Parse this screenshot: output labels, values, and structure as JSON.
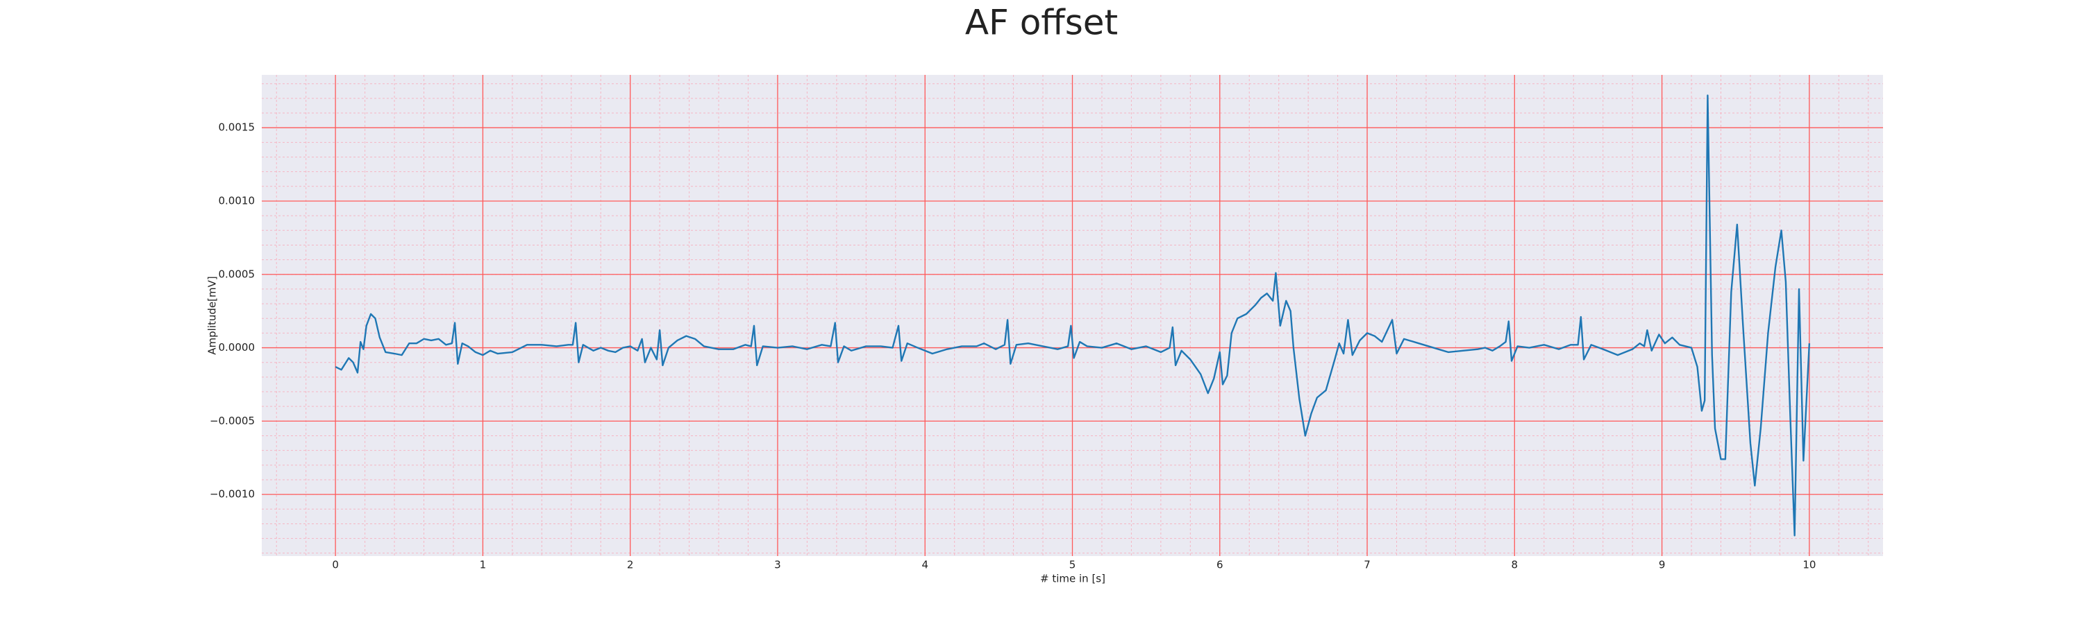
{
  "chart_data": {
    "type": "line",
    "title": "AF offset",
    "xlabel": "# time in [s]",
    "ylabel": "Amplitude[mV]",
    "color": "#1f77b4",
    "background": "#eaeaf2",
    "grid": true,
    "grid_color": "#ff5a5a",
    "minor_grid": true,
    "minor_grid_color": "#f5b6c4",
    "xlim": [
      -0.5,
      10.5
    ],
    "xticks": [
      0,
      1,
      2,
      3,
      4,
      5,
      6,
      7,
      8,
      9,
      10
    ],
    "ylim": [
      -0.00142,
      0.00186
    ],
    "yticks": [
      {
        "value": -0.001,
        "label": "−0.0010"
      },
      {
        "value": -0.0005,
        "label": "−0.0005"
      },
      {
        "value": 0,
        "label": "0.0000"
      },
      {
        "value": 0.0005,
        "label": "0.0005"
      },
      {
        "value": 0.001,
        "label": "0.0010"
      },
      {
        "value": 0.0015,
        "label": "0.0015"
      }
    ],
    "x": [
      0.0,
      0.04,
      0.09,
      0.12,
      0.15,
      0.17,
      0.19,
      0.21,
      0.24,
      0.27,
      0.3,
      0.34,
      0.4,
      0.45,
      0.5,
      0.55,
      0.6,
      0.65,
      0.7,
      0.75,
      0.79,
      0.81,
      0.83,
      0.86,
      0.9,
      0.95,
      1.0,
      1.05,
      1.1,
      1.2,
      1.3,
      1.4,
      1.5,
      1.58,
      1.61,
      1.63,
      1.65,
      1.68,
      1.75,
      1.8,
      1.85,
      1.9,
      1.95,
      2.0,
      2.05,
      2.08,
      2.1,
      2.14,
      2.18,
      2.2,
      2.22,
      2.26,
      2.32,
      2.38,
      2.44,
      2.5,
      2.6,
      2.7,
      2.78,
      2.82,
      2.84,
      2.86,
      2.9,
      3.0,
      3.1,
      3.2,
      3.3,
      3.36,
      3.39,
      3.41,
      3.45,
      3.5,
      3.6,
      3.7,
      3.78,
      3.82,
      3.84,
      3.88,
      3.95,
      4.05,
      4.15,
      4.25,
      4.35,
      4.4,
      4.48,
      4.54,
      4.56,
      4.58,
      4.62,
      4.7,
      4.8,
      4.9,
      4.97,
      4.99,
      5.01,
      5.05,
      5.1,
      5.2,
      5.3,
      5.4,
      5.5,
      5.6,
      5.66,
      5.68,
      5.7,
      5.74,
      5.8,
      5.87,
      5.92,
      5.96,
      6.0,
      6.02,
      6.05,
      6.08,
      6.12,
      6.18,
      6.24,
      6.28,
      6.32,
      6.36,
      6.38,
      6.41,
      6.45,
      6.48,
      6.5,
      6.54,
      6.58,
      6.62,
      6.66,
      6.72,
      6.78,
      6.81,
      6.84,
      6.87,
      6.9,
      6.95,
      7.0,
      7.05,
      7.1,
      7.17,
      7.2,
      7.25,
      7.35,
      7.45,
      7.55,
      7.65,
      7.75,
      7.8,
      7.85,
      7.9,
      7.94,
      7.96,
      7.98,
      8.02,
      8.1,
      8.2,
      8.3,
      8.38,
      8.43,
      8.45,
      8.47,
      8.52,
      8.6,
      8.7,
      8.8,
      8.85,
      8.88,
      8.9,
      8.93,
      8.98,
      9.02,
      9.07,
      9.12,
      9.2,
      9.24,
      9.27,
      9.29,
      9.31,
      9.34,
      9.36,
      9.4,
      9.43,
      9.47,
      9.51,
      9.55,
      9.6,
      9.63,
      9.67,
      9.72,
      9.77,
      9.81,
      9.84,
      9.87,
      9.9,
      9.93,
      9.96,
      10.0
    ],
    "values": [
      -0.00013,
      -0.00015,
      -7e-05,
      -0.0001,
      -0.00017,
      4e-05,
      -1e-05,
      0.00015,
      0.00023,
      0.0002,
      7e-05,
      -3e-05,
      -4e-05,
      -5e-05,
      3e-05,
      3e-05,
      6e-05,
      5e-05,
      6e-05,
      2e-05,
      3e-05,
      0.00017,
      -0.00011,
      3e-05,
      1e-05,
      -3e-05,
      -5e-05,
      -2e-05,
      -4e-05,
      -3e-05,
      2e-05,
      2e-05,
      1e-05,
      2e-05,
      2e-05,
      0.00017,
      -0.0001,
      2e-05,
      -2e-05,
      0,
      -2e-05,
      -3e-05,
      0,
      1e-05,
      -2e-05,
      6e-05,
      -0.0001,
      0,
      -8e-05,
      0.00012,
      -0.00012,
      0,
      5e-05,
      8e-05,
      6e-05,
      1e-05,
      -1e-05,
      -1e-05,
      2e-05,
      1e-05,
      0.00015,
      -0.00012,
      1e-05,
      0,
      1e-05,
      -1e-05,
      2e-05,
      1e-05,
      0.00017,
      -0.0001,
      1e-05,
      -2e-05,
      1e-05,
      1e-05,
      0,
      0.00015,
      -9e-05,
      3e-05,
      0,
      -4e-05,
      -1e-05,
      1e-05,
      1e-05,
      3e-05,
      -1e-05,
      2e-05,
      0.00019,
      -0.00011,
      2e-05,
      3e-05,
      1e-05,
      -1e-05,
      1e-05,
      0.00015,
      -7e-05,
      4e-05,
      1e-05,
      0,
      3e-05,
      -1e-05,
      1e-05,
      -3e-05,
      0,
      0.00014,
      -0.00012,
      -2e-05,
      -8e-05,
      -0.00018,
      -0.00031,
      -0.00021,
      -3e-05,
      -0.00025,
      -0.00019,
      0.0001,
      0.0002,
      0.00023,
      0.00029,
      0.00034,
      0.00037,
      0.00032,
      0.00051,
      0.00015,
      0.00032,
      0.00025,
      0,
      -0.00035,
      -0.0006,
      -0.00045,
      -0.00034,
      -0.00029,
      -8e-05,
      3e-05,
      -4e-05,
      0.00019,
      -5e-05,
      5e-05,
      0.0001,
      8e-05,
      4e-05,
      0.00019,
      -4e-05,
      6e-05,
      3e-05,
      0,
      -3e-05,
      -2e-05,
      -1e-05,
      0,
      -2e-05,
      1e-05,
      4e-05,
      0.00018,
      -9e-05,
      1e-05,
      0,
      2e-05,
      -1e-05,
      2e-05,
      2e-05,
      0.00021,
      -8e-05,
      2e-05,
      -1e-05,
      -5e-05,
      -1e-05,
      3e-05,
      1e-05,
      0.00012,
      -2e-05,
      9e-05,
      3e-05,
      7e-05,
      2e-05,
      0,
      -0.00013,
      -0.00043,
      -0.00036,
      0.00172,
      -5e-05,
      -0.00055,
      -0.00076,
      -0.00076,
      0.00038,
      0.00084,
      0.00015,
      -0.00065,
      -0.00094,
      -0.00055,
      0.0001,
      0.00055,
      0.0008,
      0.00045,
      -0.00045,
      -0.00128,
      0.0004,
      -0.00077,
      3e-05
    ]
  }
}
